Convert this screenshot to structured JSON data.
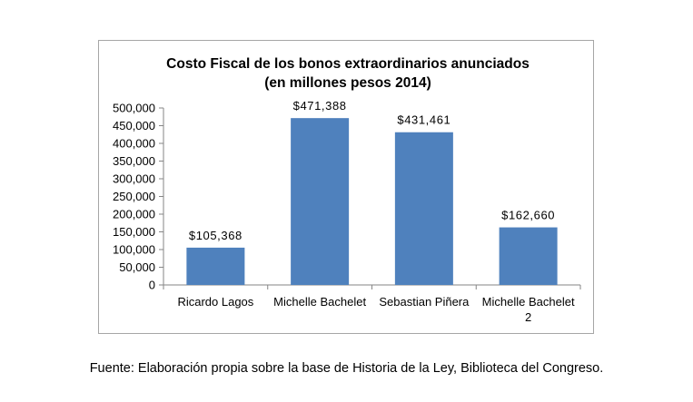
{
  "chart_data": {
    "type": "bar",
    "title": "Costo Fiscal de los bonos extraordinarios anunciados",
    "subtitle": "(en millones pesos 2014)",
    "categories": [
      [
        "Ricardo Lagos"
      ],
      [
        "Michelle Bachelet"
      ],
      [
        "Sebastian Piñera"
      ],
      [
        "Michelle Bachelet",
        "2"
      ]
    ],
    "values": [
      105368,
      471388,
      431461,
      162660
    ],
    "data_labels": [
      "$105,368",
      "$471,388",
      "$431,461",
      "$162,660"
    ],
    "ylim": [
      0,
      500000
    ],
    "yticks": [
      0,
      50000,
      100000,
      150000,
      200000,
      250000,
      300000,
      350000,
      400000,
      450000,
      500000
    ],
    "ytick_labels": [
      "0",
      "50,000",
      "100,000",
      "150,000",
      "200,000",
      "250,000",
      "300,000",
      "350,000",
      "400,000",
      "450,000",
      "500,000"
    ],
    "xlabel": "",
    "ylabel": "",
    "grid": false,
    "legend": "none",
    "bar_color": "#4f81bd"
  },
  "footer": {
    "source": "Fuente: Elaboración propia sobre la base de Historia de la Ley, Biblioteca del Congreso."
  }
}
